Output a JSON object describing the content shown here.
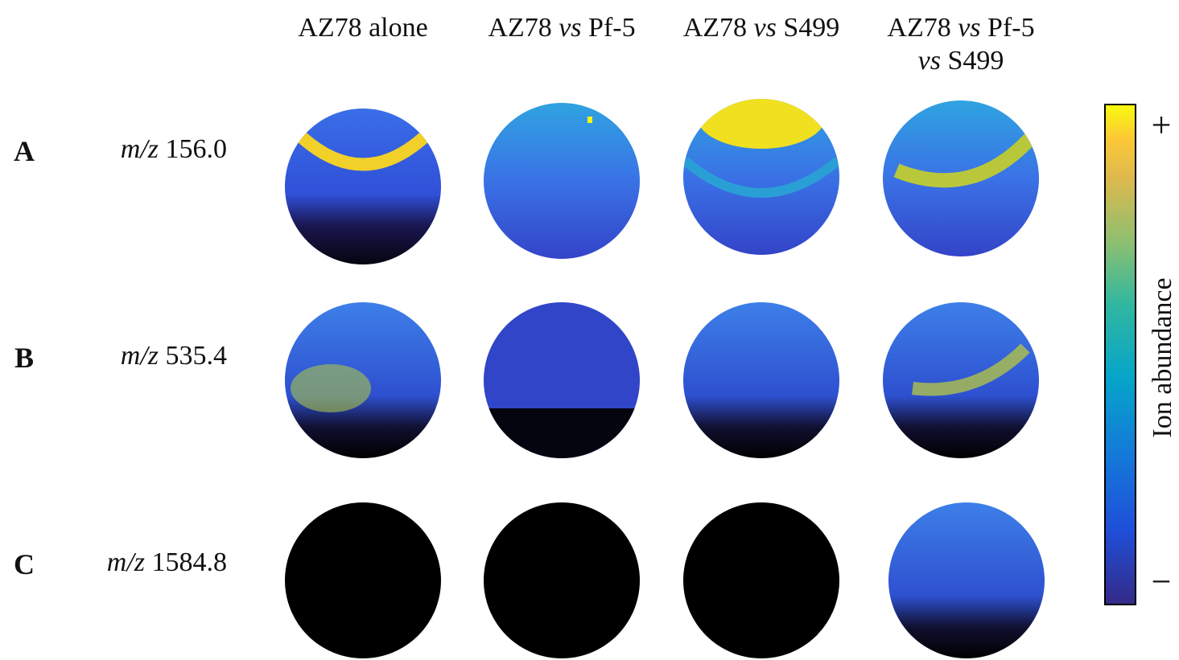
{
  "columns": [
    [
      "AZ78 alone"
    ],
    [
      "AZ78",
      "vs",
      "Pf-5"
    ],
    [
      "AZ78",
      "vs",
      "S499"
    ],
    [
      "AZ78",
      "vs",
      "Pf-5",
      "vs",
      "S499"
    ]
  ],
  "rows": [
    {
      "letter": "A",
      "mz": "m/z",
      "value": "156.0"
    },
    {
      "letter": "B",
      "mz": "m/z",
      "value": "535.4"
    },
    {
      "letter": "C",
      "mz": "m/z",
      "value": "1584.8"
    }
  ],
  "colorbar": {
    "label": "Ion abundance",
    "max": "+",
    "min": "−"
  }
}
